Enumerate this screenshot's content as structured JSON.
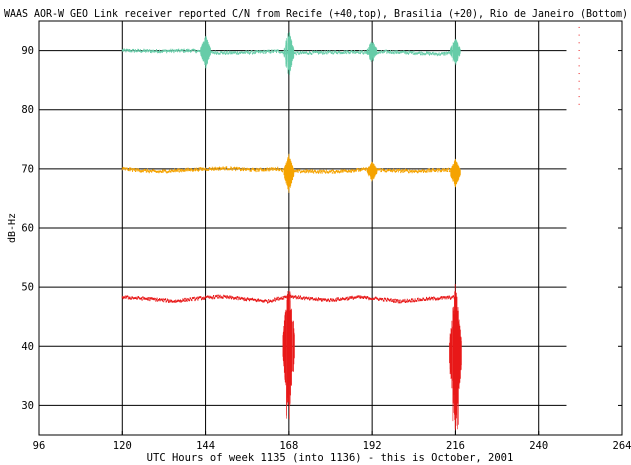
{
  "chart_data": {
    "type": "scatter",
    "title": "WAAS AOR-W GEO Link receiver reported C/N from Recife (+40,top), Brasilia (+20), Rio de Janeiro (Bottom)",
    "xlabel": "UTC Hours of week 1135 (into 1136) - this is October, 2001",
    "ylabel": "dB-Hz",
    "xlim": [
      96,
      264
    ],
    "ylim": [
      25,
      95
    ],
    "x_ticks": [
      "96",
      "120",
      "144",
      "168",
      "192",
      "216",
      "240",
      "264"
    ],
    "y_ticks": [
      "30",
      "40",
      "50",
      "60",
      "70",
      "80",
      "90"
    ],
    "grid": true,
    "legend": "none",
    "series": [
      {
        "color": "#66cca8",
        "baseline": [
          [
            120,
            90.0
          ],
          [
            130,
            89.9
          ],
          [
            140,
            90.0
          ],
          [
            145,
            89.7
          ],
          [
            150,
            89.6
          ],
          [
            158,
            89.7
          ],
          [
            165,
            89.9
          ],
          [
            168,
            89.5
          ],
          [
            172,
            89.6
          ],
          [
            180,
            89.7
          ],
          [
            188,
            89.8
          ],
          [
            192,
            89.5
          ],
          [
            196,
            89.8
          ],
          [
            205,
            89.6
          ],
          [
            212,
            89.4
          ],
          [
            216,
            89.8
          ]
        ],
        "bursts": [
          [
            144,
            87.0,
            93.0
          ],
          [
            168,
            85.5,
            94.0
          ],
          [
            192,
            88.0,
            92.0
          ],
          [
            216,
            87.5,
            92.5
          ]
        ]
      },
      {
        "color": "#f5a300",
        "baseline": [
          [
            120,
            70.0
          ],
          [
            130,
            69.5
          ],
          [
            138,
            69.8
          ],
          [
            145,
            70.0
          ],
          [
            150,
            70.1
          ],
          [
            158,
            69.8
          ],
          [
            165,
            70.0
          ],
          [
            168,
            69.5
          ],
          [
            172,
            69.6
          ],
          [
            180,
            69.5
          ],
          [
            188,
            69.8
          ],
          [
            192,
            70.0
          ],
          [
            196,
            69.7
          ],
          [
            205,
            69.6
          ],
          [
            212,
            69.8
          ],
          [
            216,
            69.8
          ]
        ],
        "bursts": [
          [
            168,
            66.0,
            73.0
          ],
          [
            192,
            68.0,
            71.5
          ],
          [
            216,
            67.0,
            72.0
          ]
        ]
      },
      {
        "color": "#e81818",
        "baseline": [
          [
            120,
            48.3
          ],
          [
            128,
            48.0
          ],
          [
            135,
            47.6
          ],
          [
            142,
            48.1
          ],
          [
            148,
            48.4
          ],
          [
            155,
            48.0
          ],
          [
            162,
            47.6
          ],
          [
            168,
            48.5
          ],
          [
            174,
            48.0
          ],
          [
            180,
            47.8
          ],
          [
            188,
            48.3
          ],
          [
            194,
            48.0
          ],
          [
            200,
            47.6
          ],
          [
            208,
            48.0
          ],
          [
            216,
            48.3
          ]
        ],
        "bursts": [
          [
            168,
            27.5,
            53.0
          ],
          [
            216,
            25.5,
            52.5
          ]
        ]
      }
    ],
    "stray_points": [
      {
        "color": "#e81818",
        "x": 251.5,
        "y_range": [
          81,
          94
        ]
      }
    ]
  }
}
